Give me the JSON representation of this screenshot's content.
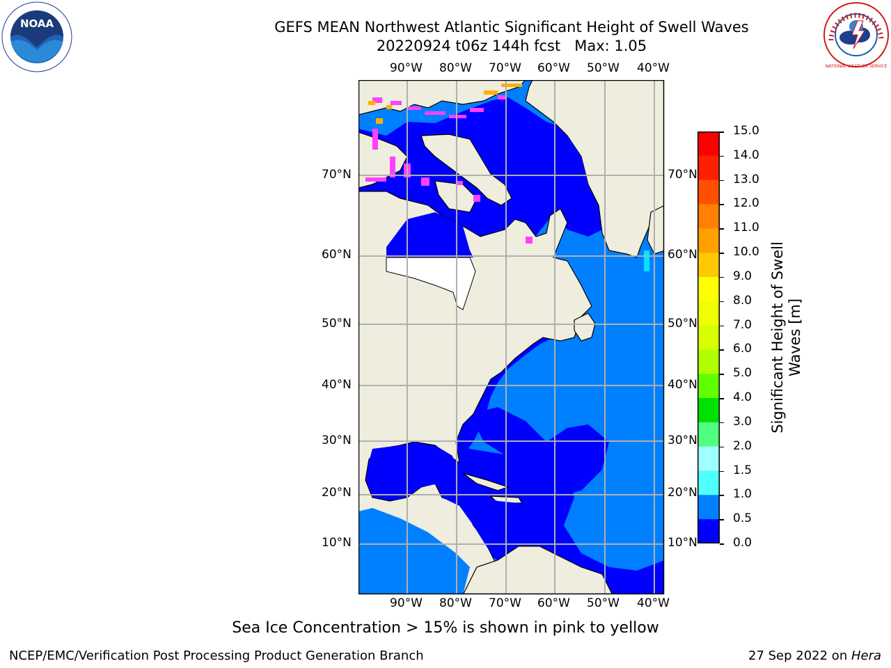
{
  "header": {
    "title_line1": "GEFS MEAN Northwest Atlantic Significant Height of Swell Waves",
    "title_line2": "20220924 t06z 144h fcst   Max: 1.05"
  },
  "logos": {
    "noaa_text": "NOAA",
    "nws_text": "NATIONAL WEATHER SERVICE"
  },
  "map": {
    "longitude_labels": [
      "90°W",
      "80°W",
      "70°W",
      "60°W",
      "50°W",
      "40°W"
    ],
    "latitude_labels": [
      "70°N",
      "60°N",
      "50°N",
      "40°N",
      "30°N",
      "20°N",
      "10°N"
    ],
    "colors": {
      "land": "#efedde",
      "swell_0_0p5": "#0000ff",
      "swell_0p5_1": "#0080ff",
      "swell_1_1p5": "#00e5ff",
      "ice_pink": "#ff40ff",
      "ice_orange": "#ffb000",
      "missing": "#ffffff",
      "grid": "#b0b0b0"
    }
  },
  "colorbar": {
    "label_line1": "Significant Height of Swell",
    "label_line2": "Waves [m]",
    "ticks": [
      "15.0",
      "14.0",
      "13.0",
      "12.0",
      "11.0",
      "10.0",
      "9.0",
      "8.0",
      "7.0",
      "6.0",
      "5.0",
      "4.0",
      "3.0",
      "2.0",
      "1.5",
      "1.0",
      "0.5",
      "0.0"
    ],
    "colors": [
      "#ff0000",
      "#ff2000",
      "#ff5000",
      "#ff8000",
      "#ffa000",
      "#ffc800",
      "#ffff00",
      "#f0ff00",
      "#d8ff00",
      "#b0ff00",
      "#60ff00",
      "#00e000",
      "#50ff80",
      "#a0ffff",
      "#50ffff",
      "#00ffff",
      "#0080ff",
      "#0000ff"
    ]
  },
  "caption": "Sea Ice Concentration > 15% is shown in pink to yellow",
  "footer": {
    "left": "NCEP/EMC/Verification Post Processing Product Generation Branch",
    "right_prefix": "27 Sep 2022 on ",
    "right_host": "Hera"
  }
}
